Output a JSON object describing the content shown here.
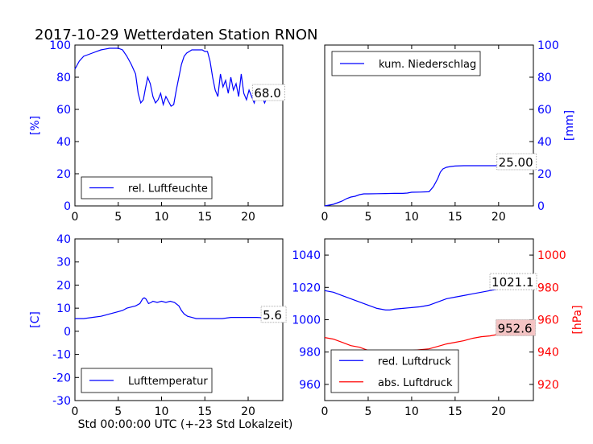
{
  "figure": {
    "title": "2017-10-29 Wetterdaten Station RNON",
    "xlabel": "Std 00:00:00 UTC (+-23 Std Lokalzeit)"
  },
  "colors": {
    "primary": "#0000ff",
    "secondary": "#ff0000",
    "axis": "#000000"
  },
  "chart_data": [
    {
      "type": "line",
      "panel": "top-left",
      "ylabel": "[%]",
      "xlim": [
        0,
        24
      ],
      "ylim": [
        0,
        100
      ],
      "xticks": [
        0,
        5,
        10,
        15,
        20
      ],
      "yticks": [
        0,
        20,
        40,
        60,
        80,
        100
      ],
      "legend": {
        "position": "lower-center"
      },
      "annotation": {
        "text": "68.0",
        "x": 20.5,
        "y": 68
      },
      "series": [
        {
          "name": "rel. Luftfeuchte",
          "color": "#0000ff",
          "x": [
            0,
            0.5,
            1,
            2,
            3,
            4,
            5,
            5.5,
            6,
            6.5,
            7,
            7.3,
            7.6,
            7.9,
            8.1,
            8.4,
            8.7,
            9,
            9.3,
            9.6,
            9.9,
            10.2,
            10.5,
            10.8,
            11.1,
            11.4,
            11.7,
            12,
            12.3,
            12.6,
            12.9,
            13.2,
            13.5,
            13.8,
            14.1,
            14.4,
            14.7,
            15,
            15.3,
            15.6,
            15.9,
            16.2,
            16.5,
            16.8,
            17.1,
            17.4,
            17.7,
            18,
            18.3,
            18.6,
            18.9,
            19.2,
            19.5,
            19.8,
            20.1,
            20.4,
            20.7,
            21,
            21.3,
            21.6,
            21.9,
            22.2,
            22.5,
            22.8,
            23.1,
            23.4,
            23.7,
            24
          ],
          "y": [
            85,
            90,
            93,
            95,
            97,
            98,
            98,
            97,
            93,
            88,
            82,
            70,
            64,
            66,
            72,
            80,
            76,
            68,
            64,
            66,
            70,
            63,
            68,
            65,
            62,
            63,
            72,
            80,
            88,
            93,
            95,
            96,
            97,
            97,
            97,
            97,
            97,
            96,
            96,
            90,
            80,
            72,
            68,
            82,
            74,
            78,
            70,
            80,
            72,
            76,
            68,
            82,
            70,
            66,
            72,
            68,
            64,
            70,
            66,
            68,
            64,
            68,
            66,
            70,
            67,
            68,
            69,
            68
          ]
        }
      ]
    },
    {
      "type": "line",
      "panel": "top-right",
      "ylabel": "[mm]",
      "xlim": [
        0,
        24
      ],
      "ylim": [
        0,
        100
      ],
      "xticks": [
        0,
        5,
        10,
        15,
        20
      ],
      "yticks": [
        0,
        20,
        40,
        60,
        80,
        100
      ],
      "legend": {
        "position": "upper-left"
      },
      "annotation": {
        "text": "25.00",
        "x": 19.8,
        "y": 25
      },
      "series": [
        {
          "name": "kum. Niederschlag",
          "color": "#0000ff",
          "x": [
            0,
            1,
            1.5,
            2,
            2.5,
            3,
            3.5,
            4,
            4.5,
            5,
            6,
            7,
            8,
            9,
            9.5,
            10,
            11,
            12,
            12.5,
            13,
            13.3,
            13.6,
            14,
            14.5,
            15,
            16,
            18,
            20,
            22,
            24
          ],
          "y": [
            0,
            1,
            2,
            3,
            4.5,
            5.5,
            6,
            7,
            7.5,
            7.5,
            7.6,
            7.7,
            7.8,
            7.8,
            8,
            8.5,
            8.6,
            8.8,
            12,
            17,
            21,
            23,
            24,
            24.5,
            24.8,
            25,
            25,
            25,
            25,
            25
          ]
        }
      ]
    },
    {
      "type": "line",
      "panel": "bottom-left",
      "ylabel": "[C]",
      "xlim": [
        0,
        24
      ],
      "ylim": [
        -30,
        40
      ],
      "xticks": [
        0,
        5,
        10,
        15,
        20
      ],
      "yticks": [
        -30,
        -20,
        -10,
        0,
        10,
        20,
        30,
        40
      ],
      "legend": {
        "position": "lower-center"
      },
      "annotation": {
        "text": "5.6",
        "x": 21.5,
        "y": 5.6
      },
      "series": [
        {
          "name": "Lufttemperatur",
          "color": "#0000ff",
          "x": [
            0,
            1,
            2,
            3,
            3.5,
            4,
            5,
            5.5,
            6,
            6.5,
            7,
            7.5,
            7.8,
            8,
            8.2,
            8.5,
            8.8,
            9,
            9.5,
            10,
            10.5,
            11,
            11.5,
            12,
            12.3,
            12.6,
            13,
            13.5,
            14,
            15,
            16,
            17,
            18,
            19,
            20,
            21,
            22,
            23,
            24
          ],
          "y": [
            5.5,
            5.5,
            6,
            6.5,
            7,
            7.5,
            8.5,
            9,
            10,
            10.5,
            11,
            12,
            14,
            14.5,
            14,
            12,
            12.5,
            13,
            12.5,
            13,
            12.5,
            13,
            12.5,
            11,
            9,
            7.5,
            6.5,
            6,
            5.5,
            5.5,
            5.5,
            5.5,
            6,
            6,
            6,
            6,
            5.8,
            5.6,
            5.6
          ]
        }
      ]
    },
    {
      "type": "line",
      "panel": "bottom-right",
      "ylabel_right": "[hPa]",
      "xlim": [
        0,
        24
      ],
      "ylim_left": [
        950,
        1050
      ],
      "ylim_right": [
        910,
        1010
      ],
      "xticks": [
        0,
        5,
        10,
        15,
        20
      ],
      "yticks_left": [
        960,
        980,
        1000,
        1020,
        1040
      ],
      "yticks_right": [
        920,
        940,
        960,
        980,
        1000
      ],
      "legend": {
        "position": "lower-left"
      },
      "annotations": [
        {
          "text": "1021.1",
          "x": 19,
          "y": 1021.1,
          "axis": "left",
          "boxColor": "#ffffff"
        },
        {
          "text": "952.6",
          "x": 19.7,
          "y": 952.6,
          "axis": "right",
          "boxColor": "#f4c4c4"
        }
      ],
      "series": [
        {
          "name": "red. Luftdruck",
          "color": "#0000ff",
          "axis": "left",
          "x": [
            0,
            1,
            2,
            3,
            4,
            5,
            6,
            7,
            7.5,
            8,
            9,
            10,
            11,
            12,
            13,
            14,
            15,
            16,
            17,
            18,
            19,
            20,
            21,
            22,
            23,
            24
          ],
          "y": [
            1018,
            1017,
            1015,
            1013,
            1011,
            1009,
            1007,
            1006,
            1006,
            1006.5,
            1007,
            1007.5,
            1008,
            1009,
            1011,
            1013,
            1014,
            1015,
            1016,
            1017,
            1018,
            1019,
            1020,
            1020.5,
            1021,
            1021.1
          ]
        },
        {
          "name": "abs. Luftdruck",
          "color": "#ff0000",
          "axis": "right",
          "x": [
            0,
            1,
            2,
            3,
            4,
            5,
            6,
            7,
            7.5,
            8,
            9,
            10,
            11,
            12,
            13,
            14,
            15,
            16,
            17,
            18,
            19,
            20,
            21,
            22,
            23,
            24
          ],
          "y": [
            949,
            948,
            946,
            944,
            943,
            941,
            940,
            939.5,
            939.5,
            940,
            940.5,
            941,
            941.5,
            942,
            943.5,
            945,
            946,
            947,
            948.5,
            949.5,
            950,
            951,
            951.5,
            952,
            952.3,
            952.6
          ]
        }
      ]
    }
  ]
}
